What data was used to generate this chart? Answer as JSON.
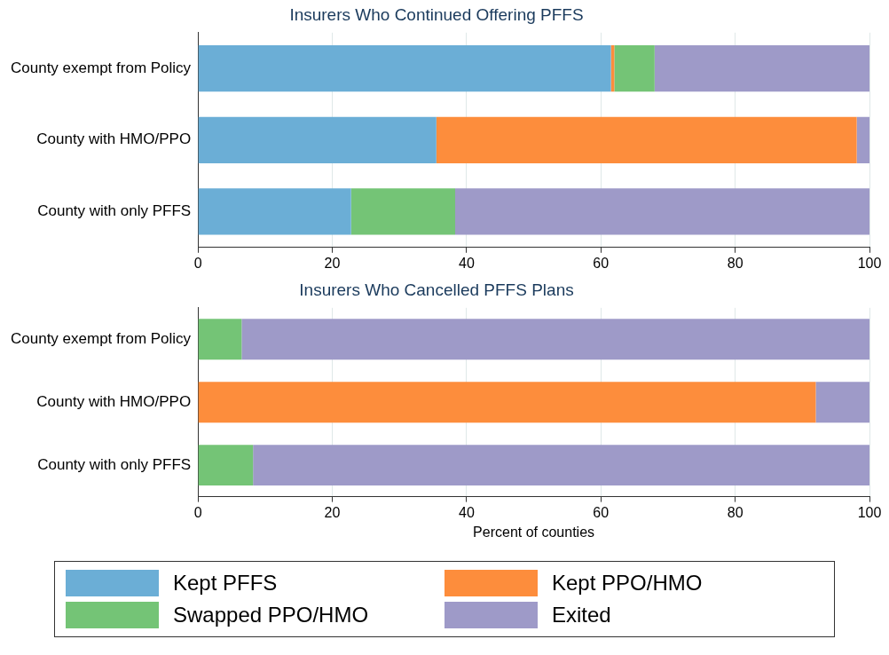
{
  "chart_data": [
    {
      "type": "bar",
      "orientation": "horizontal",
      "stacked": true,
      "title": "Insurers Who Continued Offering PFFS",
      "categories": [
        "County exempt from Policy",
        "County with HMO/PPO",
        "County with only PFFS"
      ],
      "series": [
        {
          "color": "#6baed6",
          "values": [
            61.5,
            35.5,
            22.8
          ]
        },
        {
          "color": "#fd8d3c",
          "values": [
            0.5,
            62.6,
            0
          ]
        },
        {
          "color": "#74c476",
          "values": [
            6,
            0,
            15.5
          ]
        },
        {
          "color": "#9e9ac8",
          "values": [
            32,
            1.9,
            61.7
          ]
        }
      ],
      "xlim": [
        0,
        100
      ],
      "xticks": [
        0,
        20,
        40,
        60,
        80,
        100
      ],
      "grid": "x"
    },
    {
      "type": "bar",
      "orientation": "horizontal",
      "stacked": true,
      "title": "Insurers Who Cancelled PFFS Plans",
      "xlabel": "Percent of counties",
      "categories": [
        "County exempt from Policy",
        "County with HMO/PPO",
        "County with only PFFS"
      ],
      "series": [
        {
          "name": "Kept PFFS",
          "color": "#6baed6",
          "values": [
            0,
            0,
            0
          ]
        },
        {
          "name": "Kept PPO/HMO",
          "color": "#fd8d3c",
          "values": [
            0,
            92,
            0
          ]
        },
        {
          "name": "Swapped PPO/HMO",
          "color": "#74c476",
          "values": [
            6.5,
            0,
            8.2
          ]
        },
        {
          "name": "Exited",
          "color": "#9e9ac8",
          "values": [
            93.5,
            8,
            91.8
          ]
        }
      ],
      "xlim": [
        0,
        100
      ],
      "xticks": [
        0,
        20,
        40,
        60,
        80,
        100
      ],
      "grid": "x",
      "legend": "bottom"
    }
  ]
}
